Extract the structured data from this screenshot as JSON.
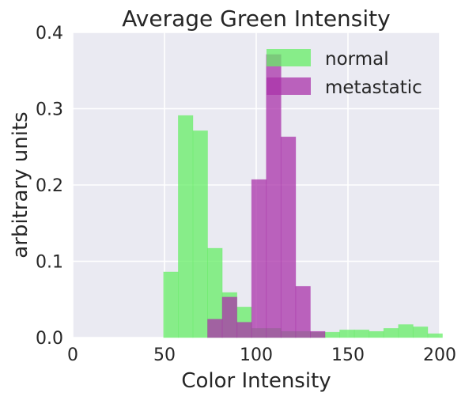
{
  "chart_data": {
    "type": "bar",
    "title": "Average Green Intensity",
    "xlabel": "Color Intensity",
    "ylabel": "arbitrary units",
    "xlim": [
      0,
      200
    ],
    "ylim": [
      0,
      0.4
    ],
    "xticks": [
      "0",
      "50",
      "100",
      "150",
      "200"
    ],
    "yticks": [
      "0.0",
      "0.1",
      "0.2",
      "0.3",
      "0.4"
    ],
    "grid": true,
    "legend_position": "top-right",
    "bin_width": 8,
    "series": [
      {
        "name": "normal",
        "color": "#66ee66",
        "bins": [
          {
            "x": 49.5,
            "value": 0.086
          },
          {
            "x": 57.5,
            "value": 0.291
          },
          {
            "x": 65.5,
            "value": 0.271
          },
          {
            "x": 73.5,
            "value": 0.117
          },
          {
            "x": 81.5,
            "value": 0.059
          },
          {
            "x": 89.5,
            "value": 0.04
          },
          {
            "x": 97.5,
            "value": 0.012
          },
          {
            "x": 105.5,
            "value": 0.012
          },
          {
            "x": 113.5,
            "value": 0.008
          },
          {
            "x": 121.5,
            "value": 0.008
          },
          {
            "x": 129.5,
            "value": 0.007
          },
          {
            "x": 137.5,
            "value": 0.007
          },
          {
            "x": 145.5,
            "value": 0.01
          },
          {
            "x": 153.5,
            "value": 0.01
          },
          {
            "x": 161.5,
            "value": 0.008
          },
          {
            "x": 169.5,
            "value": 0.012
          },
          {
            "x": 177.5,
            "value": 0.017
          },
          {
            "x": 185.5,
            "value": 0.014
          },
          {
            "x": 193.5,
            "value": 0.005
          }
        ]
      },
      {
        "name": "metastatic",
        "color": "#aa33aa",
        "bins": [
          {
            "x": 73.5,
            "value": 0.024
          },
          {
            "x": 81.5,
            "value": 0.053
          },
          {
            "x": 89.5,
            "value": 0.02
          },
          {
            "x": 97.5,
            "value": 0.207
          },
          {
            "x": 105.5,
            "value": 0.371
          },
          {
            "x": 113.5,
            "value": 0.263
          },
          {
            "x": 121.5,
            "value": 0.067
          },
          {
            "x": 129.5,
            "value": 0.008
          }
        ]
      }
    ]
  }
}
